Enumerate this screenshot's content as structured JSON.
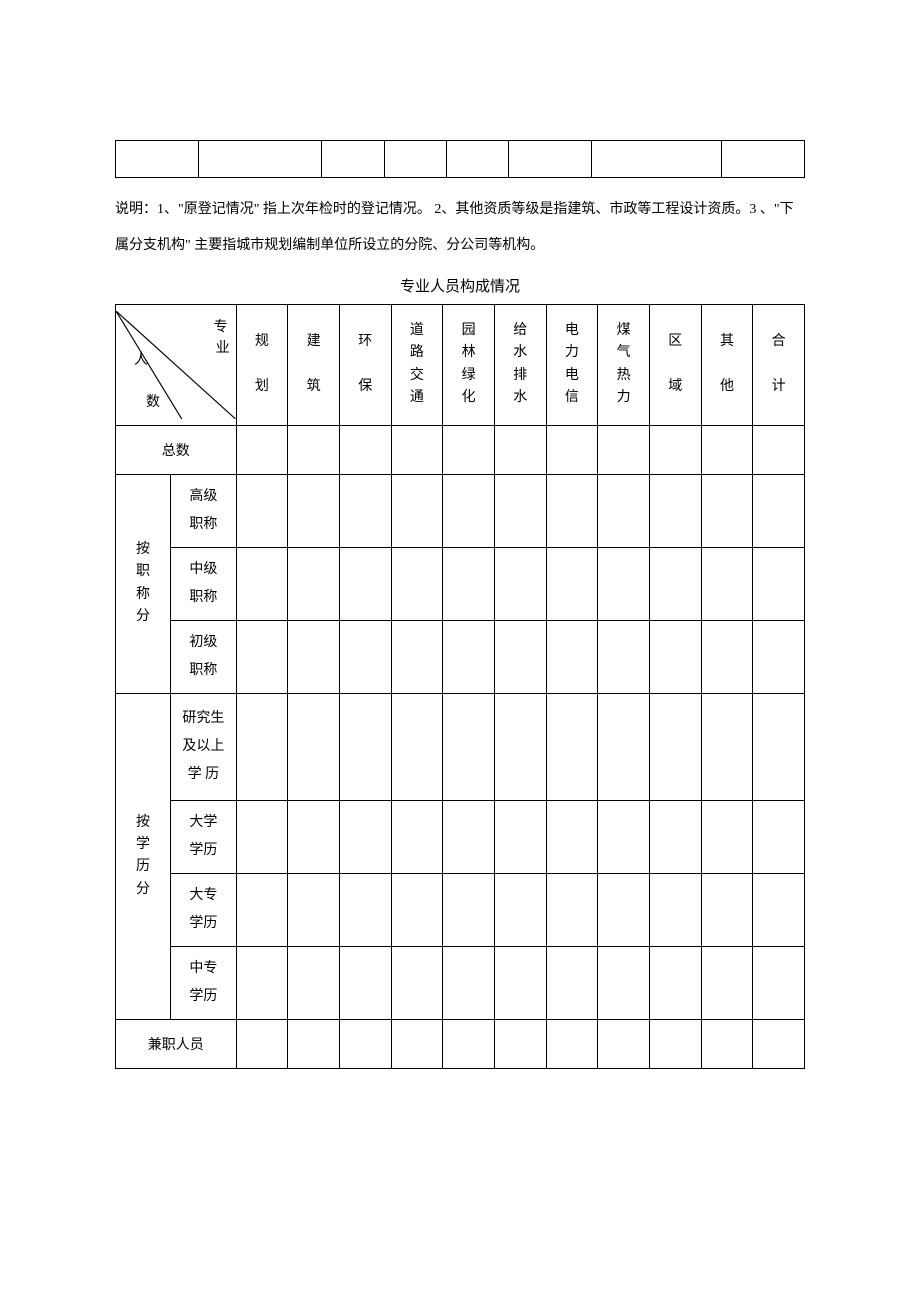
{
  "note": "说明：1、\"原登记情况\" 指上次年检时的登记情况。 2、其他资质等级是指建筑、市政等工程设计资质。3 、\"下属分支机构\" 主要指城市规划编制单位所设立的分院、分公司等机构。",
  "title2": "专业人员构成情况",
  "diag": {
    "top1": "专",
    "top2": "业",
    "mid": "人",
    "bot": "数"
  },
  "cols": {
    "c1": "规\n\n划",
    "c2": "建\n\n筑",
    "c3": "环\n\n保",
    "c4": "道\n路\n交\n通",
    "c5": "园\n林\n绿\n化",
    "c6": "给\n水\n排\n水",
    "c7": "电\n力\n电\n信",
    "c8": "煤\n气\n热\n力",
    "c9": "区\n\n域",
    "c10": "其\n\n他",
    "c11": "合\n\n计"
  },
  "rows": {
    "total": "总数",
    "byTitle": "按\n职\n称\n分",
    "sr": "高级\n职称",
    "mid": "中级\n职称",
    "jr": "初级\n职称",
    "byEdu": "按\n学\n历\n分",
    "grad": "研究生\n及以上\n学  历",
    "uni": "大学\n学历",
    "col": "大专\n学历",
    "sec": "中专\n学历",
    "part": "兼职人员"
  },
  "data": {
    "total": [
      "",
      "",
      "",
      "",
      "",
      "",
      "",
      "",
      "",
      "",
      ""
    ],
    "sr": [
      "",
      "",
      "",
      "",
      "",
      "",
      "",
      "",
      "",
      "",
      ""
    ],
    "mid": [
      "",
      "",
      "",
      "",
      "",
      "",
      "",
      "",
      "",
      "",
      ""
    ],
    "jr": [
      "",
      "",
      "",
      "",
      "",
      "",
      "",
      "",
      "",
      "",
      ""
    ],
    "grad": [
      "",
      "",
      "",
      "",
      "",
      "",
      "",
      "",
      "",
      "",
      ""
    ],
    "uni": [
      "",
      "",
      "",
      "",
      "",
      "",
      "",
      "",
      "",
      "",
      ""
    ],
    "col": [
      "",
      "",
      "",
      "",
      "",
      "",
      "",
      "",
      "",
      "",
      ""
    ],
    "sec": [
      "",
      "",
      "",
      "",
      "",
      "",
      "",
      "",
      "",
      "",
      ""
    ],
    "part": [
      "",
      "",
      "",
      "",
      "",
      "",
      "",
      "",
      "",
      "",
      ""
    ]
  },
  "style": {
    "border_color": "#000000",
    "background": "#ffffff",
    "font_family": "SimSun",
    "font_size_pt": 10.5
  }
}
